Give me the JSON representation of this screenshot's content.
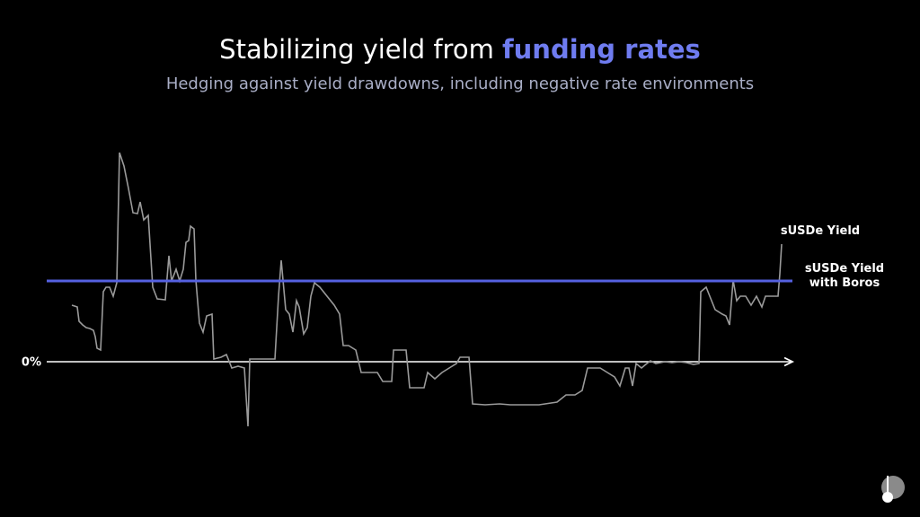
{
  "title": "Stabilizing yield from",
  "title_highlight": "funding rates",
  "subtitle": "Hedging against yield drawdowns, including negative rate environments",
  "chart_data": {
    "type": "line",
    "xlim": [
      -28,
      802
    ],
    "ylim": [
      -10,
      25
    ],
    "yticks": [
      {
        "value": 0,
        "label": "0%"
      }
    ],
    "series": [
      {
        "name": "sUSDe Yield",
        "color": "#9a9a9a",
        "x": [
          0,
          6,
          8,
          12,
          16,
          20,
          24,
          26,
          28,
          32,
          35,
          38,
          42,
          46,
          50,
          53,
          58,
          63,
          68,
          73,
          76,
          80,
          85,
          90,
          95,
          104,
          108,
          111,
          116,
          120,
          124,
          127,
          130,
          132,
          136,
          138,
          142,
          146,
          150,
          156,
          158,
          166,
          172,
          178,
          185,
          192,
          196,
          198,
          220,
          226,
          230,
          233,
          238,
          242,
          246,
          250,
          253,
          258,
          262,
          266,
          270,
          276,
          284,
          292,
          298,
          302,
          308,
          316,
          322,
          332,
          340,
          346,
          356,
          358,
          372,
          376,
          392,
          396,
          404,
          412,
          420,
          428,
          432,
          442,
          446,
          460,
          476,
          488,
          520,
          540,
          550,
          560,
          568,
          574,
          588,
          596,
          604,
          610,
          616,
          620,
          624,
          628,
          634,
          640,
          644,
          650,
          660,
          668,
          676,
          684,
          692,
          698,
          700,
          706,
          710,
          716,
          724,
          728,
          732,
          736,
          740,
          744,
          750,
          756,
          762,
          768,
          772,
          780,
          786,
          788,
          790
        ],
        "values": [
          6.3,
          6.1,
          4.5,
          4.1,
          3.8,
          3.7,
          3.5,
          2.8,
          1.5,
          1.3,
          7.8,
          8.3,
          8.3,
          7.3,
          8.8,
          23.3,
          21.8,
          19.3,
          16.6,
          16.5,
          17.8,
          15.8,
          16.3,
          8.3,
          7,
          6.9,
          11.8,
          9,
          10.3,
          9,
          10.3,
          13.3,
          13.5,
          15.1,
          14.8,
          9.1,
          4.3,
          3.3,
          5.1,
          5.3,
          0.3,
          0.5,
          0.8,
          -0.7,
          -0.5,
          -0.7,
          -7.2,
          0.3,
          0.3,
          0.3,
          7.3,
          11.3,
          5.8,
          5.3,
          3.3,
          6.8,
          6.1,
          3.1,
          3.8,
          7.3,
          8.8,
          8.3,
          7.3,
          6.3,
          5.3,
          1.8,
          1.8,
          1.3,
          -1.2,
          -1.2,
          -1.2,
          -2.2,
          -2.2,
          1.3,
          1.3,
          -2.9,
          -2.9,
          -1.2,
          -1.9,
          -1.2,
          -0.7,
          -0.2,
          0.5,
          0.5,
          -4.7,
          -4.8,
          -4.7,
          -4.8,
          -4.8,
          -4.5,
          -3.7,
          -3.7,
          -3.2,
          -0.7,
          -0.7,
          -1.2,
          -1.7,
          -2.7,
          -0.7,
          -0.7,
          -2.7,
          -0.2,
          -0.7,
          -0.2,
          0.1,
          -0.2,
          0,
          -0.1,
          0,
          -0.1,
          -0.3,
          -0.2,
          7.8,
          8.3,
          7.3,
          5.8,
          5.3,
          5.1,
          4.1,
          9.1,
          6.8,
          7.3,
          7.3,
          6.3,
          7.3,
          6.1,
          7.3,
          7.3,
          7.3,
          9.8,
          13.1
        ]
      },
      {
        "name": "sUSDe Yield with Boros",
        "color": "#5561e0",
        "x": [
          -28,
          802
        ],
        "values": [
          9,
          9
        ]
      }
    ]
  }
}
